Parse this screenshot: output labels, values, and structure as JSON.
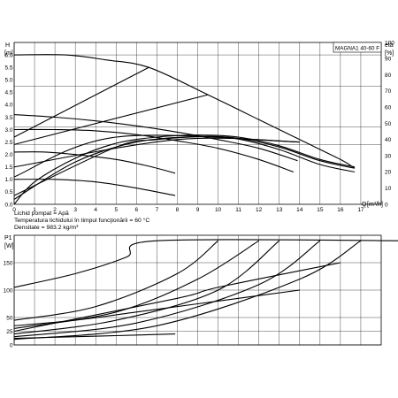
{
  "chart_data": [
    {
      "type": "line",
      "ylabel": "H",
      "yunit": "[m]",
      "y2label": "eta",
      "y2unit": "[%]",
      "xlabel": "Q",
      "xunit": "[m³/h]",
      "xlim": [
        0,
        18
      ],
      "ylim": [
        0,
        6.5
      ],
      "y2lim": [
        0,
        100
      ],
      "grid": true,
      "title": "MAGNA1 40-60 F",
      "x_ticks": [
        "0",
        "1",
        "2",
        "3",
        "4",
        "5",
        "6",
        "7",
        "8",
        "9",
        "10",
        "11",
        "12",
        "13",
        "14",
        "15",
        "16",
        "17"
      ],
      "y_ticks": [
        "0.0",
        "0.5",
        "1.0",
        "1.5",
        "2.0",
        "2.5",
        "3.0",
        "3.5",
        "4.0",
        "4.5",
        "5.0",
        "5.5",
        "6.0"
      ],
      "y2_ticks": [
        "0",
        "10",
        "20",
        "30",
        "40",
        "50",
        "60",
        "70",
        "80",
        "90",
        "100"
      ],
      "gridlines_h": [
        2.4,
        3.1,
        4.75,
        6.0
      ],
      "series": [
        {
          "points": [
            [
              0,
              6.0
            ],
            [
              2.5,
              6.0
            ],
            [
              4.5,
              5.8
            ],
            [
              6.6,
              5.5
            ],
            [
              9.5,
              4.4
            ],
            [
              12,
              3.4
            ],
            [
              14,
              2.6
            ],
            [
              16,
              1.8
            ],
            [
              16.7,
              1.45
            ]
          ]
        },
        {
          "points": [
            [
              0,
              1.0
            ],
            [
              2,
              1.0
            ],
            [
              4,
              0.9
            ],
            [
              6,
              0.65
            ],
            [
              7.9,
              0.35
            ]
          ]
        },
        {
          "points": [
            [
              0,
              2.1
            ],
            [
              1.5,
              2.1
            ],
            [
              3,
              2.0
            ],
            [
              5,
              1.8
            ],
            [
              6.5,
              1.55
            ],
            [
              7.9,
              1.25
            ]
          ]
        },
        {
          "points": [
            [
              0,
              3.0
            ],
            [
              2,
              3.0
            ],
            [
              4,
              2.95
            ],
            [
              6,
              2.8
            ],
            [
              8,
              2.55
            ],
            [
              10,
              2.25
            ],
            [
              12,
              1.8
            ],
            [
              13.7,
              1.3
            ]
          ]
        },
        {
          "points": [
            [
              0,
              3.6
            ],
            [
              2,
              3.5
            ],
            [
              4,
              3.35
            ],
            [
              6,
              3.15
            ],
            [
              8,
              2.9
            ],
            [
              10,
              2.6
            ],
            [
              12,
              2.25
            ],
            [
              13.9,
              1.75
            ]
          ]
        },
        {
          "points": [
            [
              0,
              2.7
            ],
            [
              6.6,
              5.5
            ]
          ]
        },
        {
          "points": [
            [
              0,
              2.4
            ],
            [
              9.5,
              4.4
            ]
          ]
        },
        {
          "points": [
            [
              0,
              1.5
            ],
            [
              8,
              2.6
            ],
            [
              14,
              2.5
            ]
          ]
        },
        {
          "points": [
            [
              0,
              1.1
            ],
            [
              5,
              2.7
            ],
            [
              14,
              2.5
            ]
          ]
        },
        {
          "points": [
            [
              0,
              0.35
            ],
            [
              5,
              2.3
            ],
            [
              7,
              2.6
            ],
            [
              9.5,
              2.72
            ],
            [
              11,
              2.62
            ],
            [
              13,
              2.2
            ],
            [
              15,
              1.6
            ],
            [
              16.7,
              1.3
            ]
          ]
        },
        {
          "points": [
            [
              0,
              0.2
            ],
            [
              3,
              1.7
            ],
            [
              6,
              2.5
            ],
            [
              9,
              2.72
            ],
            [
              11,
              2.65
            ],
            [
              13,
              2.3
            ],
            [
              15,
              1.75
            ],
            [
              16.7,
              1.45
            ]
          ]
        },
        {
          "points": [
            [
              0,
              0.0
            ],
            [
              1,
              0.9
            ],
            [
              3,
              1.85
            ],
            [
              5,
              2.45
            ],
            [
              7,
              2.7
            ],
            [
              9,
              2.78
            ],
            [
              11,
              2.7
            ],
            [
              13,
              2.35
            ],
            [
              15,
              1.8
            ],
            [
              16.7,
              1.5
            ]
          ]
        }
      ]
    },
    {
      "type": "line",
      "ylabel": "P1",
      "yunit": "[W]",
      "xlim": [
        0,
        18
      ],
      "ylim": [
        0,
        200
      ],
      "grid": true,
      "y_ticks": [
        "0",
        "25",
        "50",
        "100",
        "150"
      ],
      "series": [
        {
          "points": [
            [
              0,
              12
            ],
            [
              2,
              14
            ],
            [
              5,
              17
            ],
            [
              7.9,
              20
            ]
          ]
        },
        {
          "points": [
            [
              0,
              35
            ],
            [
              3,
              45
            ],
            [
              6,
              60
            ],
            [
              9,
              75
            ],
            [
              12,
              90
            ],
            [
              14,
              100
            ]
          ]
        },
        {
          "points": [
            [
              0,
              105
            ],
            [
              3,
              130
            ],
            [
              5.5,
              160
            ],
            [
              7,
              190
            ],
            [
              19,
              190
            ]
          ]
        },
        {
          "points": [
            [
              0,
              45
            ],
            [
              4,
              70
            ],
            [
              8,
              130
            ],
            [
              10,
              190
            ]
          ]
        },
        {
          "points": [
            [
              0,
              30
            ],
            [
              5,
              60
            ],
            [
              9,
              120
            ],
            [
              12,
              190
            ]
          ]
        },
        {
          "points": [
            [
              0,
              20
            ],
            [
              5,
              45
            ],
            [
              10,
              100
            ],
            [
              13,
              190
            ]
          ]
        },
        {
          "points": [
            [
              0,
              15
            ],
            [
              6,
              40
            ],
            [
              12,
              110
            ],
            [
              15,
              190
            ]
          ]
        },
        {
          "points": [
            [
              0,
              10
            ],
            [
              7,
              35
            ],
            [
              14,
              120
            ],
            [
              17,
              190
            ]
          ]
        },
        {
          "points": [
            [
              0,
              25
            ],
            [
              8,
              85
            ],
            [
              10,
              105
            ],
            [
              16,
              150
            ]
          ]
        }
      ]
    }
  ],
  "notes": {
    "line1": "Lichid pompat = Apă",
    "line2": "Temperatura lichidului în timpul funcţionării = 60 °C",
    "line3": "Densitate = 983.2 kg/m³"
  }
}
